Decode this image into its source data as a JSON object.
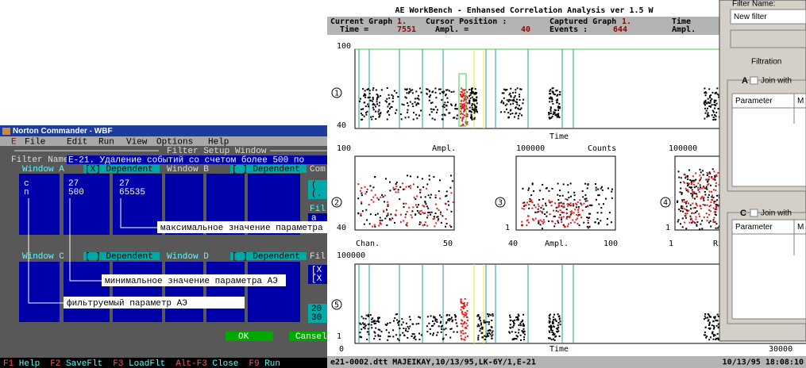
{
  "nc": {
    "title": "Norton Commander - WBF",
    "menu": [
      "E",
      "File",
      "Edit",
      "Run",
      "View",
      "Options",
      "Help"
    ],
    "window_title": "Filter Setup Window",
    "filter_name_label": "Filter Name:",
    "filter_name": "E-21. Удаление событий со счетом более 500 по",
    "windows": [
      "Window A",
      "Window B",
      "Window C",
      "Window D"
    ],
    "dependent": [
      "[X] Dependent",
      "[ ] Dependent",
      "[ ] Dependent",
      "[ ] Dependent"
    ],
    "window_a_columns": [
      [
        "c",
        "n"
      ],
      [
        "27",
        "500"
      ],
      [
        "27",
        "65535"
      ]
    ],
    "right_fragments": [
      "Com",
      "(",
      "(.",
      "Fil",
      "a",
      "Fil",
      "[X",
      "[X",
      "20",
      "30"
    ],
    "annotations": [
      "максимальное значение параметра АЭ",
      "минимальное значение параметра АЭ",
      "фильтруемый параметр АЭ"
    ],
    "buttons": [
      "OK",
      "Cansel"
    ],
    "function_keys": [
      {
        "key": "F1",
        "label": "Help"
      },
      {
        "key": "F2",
        "label": "SaveFlt"
      },
      {
        "key": "F3",
        "label": "LoadFlt"
      },
      {
        "key": "Alt-F3",
        "label": "Close"
      },
      {
        "key": "F9",
        "label": "Run"
      }
    ]
  },
  "workbench": {
    "title": "AE WorkBench - Enhansed Correlation Analysis ver 1.5 W",
    "header_labels": [
      "Current Graph",
      "Cursor Position :",
      "Captured Graph",
      "Time",
      "Time =",
      "Ampl. =",
      "Events :",
      "Ampl."
    ],
    "header_values": [
      "1.",
      "1.",
      "7551",
      "40",
      "644"
    ],
    "plot_numbers": [
      "1",
      "2",
      "3",
      "4",
      "5"
    ],
    "plot1": {
      "y_top": "100",
      "y_bottom": "40",
      "x_label": "Time"
    },
    "plot2": {
      "y_top": "100",
      "y_bottom": "40",
      "x_label": "Chan.",
      "x_right": "50",
      "title": "Ampl."
    },
    "plot3": {
      "y_top": "100000",
      "y_bottom": "1",
      "x_left": "40",
      "x_label": "Ampl.",
      "x_right": "100",
      "title": "Counts"
    },
    "plot4": {
      "y_top": "100000",
      "y_bottom": "1",
      "x_left": "1",
      "x_label": "Ri"
    },
    "plot5": {
      "y_top": "100000",
      "y_bottom": "1",
      "x_left": "0",
      "x_label": "Time",
      "x_right": "30000"
    },
    "footer_left": "e21-0002.dtt  MAJEIKAY,10/13/95,LK-6Y/1,E-21",
    "footer_right": "10/13/95 18:08:10"
  },
  "dialog": {
    "filter_name_label": "Filter Name:",
    "filter_name": "New filter",
    "filtration": "Filtration",
    "group_a": "A",
    "group_c": "C",
    "join_with": "Join with",
    "parameter": "Parameter",
    "m_column": "M"
  }
}
